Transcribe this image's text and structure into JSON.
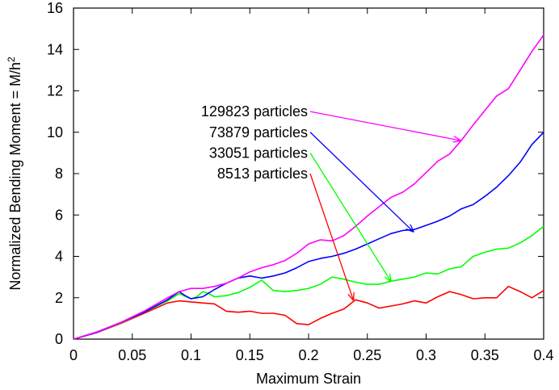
{
  "chart_data": {
    "type": "line",
    "title": "",
    "xlabel": "Maximum Strain",
    "ylabel_main": "Normalized Bending Moment = M/h",
    "ylabel_superscript": "2",
    "xlim": [
      0,
      0.4
    ],
    "ylim": [
      0,
      16
    ],
    "xticks": [
      "0",
      "0.05",
      "0.1",
      "0.15",
      "0.2",
      "0.25",
      "0.3",
      "0.35",
      "0.4"
    ],
    "xtick_values": [
      0,
      0.05,
      0.1,
      0.15,
      0.2,
      0.25,
      0.3,
      0.35,
      0.4
    ],
    "yticks": [
      "0",
      "2",
      "4",
      "6",
      "8",
      "10",
      "12",
      "14",
      "16"
    ],
    "ytick_values": [
      0,
      2,
      4,
      6,
      8,
      10,
      12,
      14,
      16
    ],
    "grid": false,
    "series": [
      {
        "name": "129823 particles",
        "color": "#ff00ff",
        "arrow_to": [
          0.329,
          9.6
        ],
        "x": [
          0,
          0.02,
          0.04,
          0.06,
          0.08,
          0.09,
          0.1,
          0.11,
          0.12,
          0.13,
          0.14,
          0.15,
          0.16,
          0.17,
          0.18,
          0.19,
          0.2,
          0.21,
          0.22,
          0.23,
          0.24,
          0.25,
          0.26,
          0.27,
          0.28,
          0.29,
          0.3,
          0.31,
          0.32,
          0.33,
          0.34,
          0.35,
          0.36,
          0.37,
          0.38,
          0.39,
          0.4
        ],
        "y": [
          0,
          0.35,
          0.8,
          1.35,
          2.0,
          2.3,
          2.45,
          2.45,
          2.55,
          2.7,
          2.95,
          3.25,
          3.45,
          3.6,
          3.8,
          4.15,
          4.6,
          4.8,
          4.75,
          5.0,
          5.45,
          5.95,
          6.4,
          6.85,
          7.1,
          7.5,
          8.05,
          8.6,
          8.95,
          9.6,
          10.35,
          11.05,
          11.75,
          12.1,
          13.0,
          13.9,
          14.7
        ]
      },
      {
        "name": "73879 particles",
        "color": "#0000ff",
        "arrow_to": [
          0.289,
          5.2
        ],
        "x": [
          0,
          0.02,
          0.04,
          0.06,
          0.08,
          0.09,
          0.095,
          0.1,
          0.11,
          0.12,
          0.13,
          0.14,
          0.15,
          0.16,
          0.17,
          0.18,
          0.19,
          0.2,
          0.21,
          0.22,
          0.23,
          0.24,
          0.25,
          0.26,
          0.27,
          0.28,
          0.29,
          0.3,
          0.31,
          0.32,
          0.33,
          0.34,
          0.35,
          0.36,
          0.37,
          0.38,
          0.39,
          0.4
        ],
        "y": [
          0,
          0.33,
          0.8,
          1.3,
          1.9,
          2.3,
          2.1,
          1.95,
          2.05,
          2.4,
          2.7,
          2.95,
          3.05,
          2.95,
          3.05,
          3.2,
          3.45,
          3.75,
          3.9,
          4.0,
          4.15,
          4.35,
          4.6,
          4.85,
          5.1,
          5.25,
          5.3,
          5.5,
          5.7,
          5.95,
          6.3,
          6.5,
          6.9,
          7.35,
          7.9,
          8.55,
          9.4,
          10.0
        ]
      },
      {
        "name": "33051 particles",
        "color": "#00ff00",
        "arrow_to": [
          0.27,
          2.8
        ],
        "x": [
          0,
          0.02,
          0.04,
          0.06,
          0.08,
          0.09,
          0.1,
          0.105,
          0.11,
          0.115,
          0.12,
          0.13,
          0.14,
          0.15,
          0.16,
          0.17,
          0.18,
          0.19,
          0.2,
          0.21,
          0.22,
          0.23,
          0.24,
          0.25,
          0.26,
          0.27,
          0.28,
          0.29,
          0.3,
          0.31,
          0.32,
          0.33,
          0.34,
          0.35,
          0.36,
          0.37,
          0.38,
          0.39,
          0.4
        ],
        "y": [
          0,
          0.33,
          0.78,
          1.3,
          1.85,
          2.2,
          1.95,
          2.05,
          2.3,
          2.2,
          2.05,
          2.1,
          2.25,
          2.5,
          2.85,
          2.35,
          2.3,
          2.35,
          2.45,
          2.65,
          3.0,
          2.9,
          2.75,
          2.65,
          2.65,
          2.8,
          2.9,
          3.0,
          3.2,
          3.15,
          3.4,
          3.5,
          4.0,
          4.2,
          4.35,
          4.4,
          4.65,
          5.0,
          5.45
        ]
      },
      {
        "name": "8513 particles",
        "color": "#ff0000",
        "arrow_to": [
          0.238,
          1.9
        ],
        "x": [
          0,
          0.02,
          0.04,
          0.06,
          0.08,
          0.09,
          0.1,
          0.11,
          0.12,
          0.13,
          0.14,
          0.15,
          0.16,
          0.17,
          0.18,
          0.19,
          0.2,
          0.21,
          0.22,
          0.23,
          0.24,
          0.25,
          0.26,
          0.27,
          0.28,
          0.29,
          0.3,
          0.31,
          0.32,
          0.33,
          0.34,
          0.35,
          0.36,
          0.37,
          0.38,
          0.39,
          0.4
        ],
        "y": [
          0,
          0.32,
          0.75,
          1.25,
          1.75,
          1.85,
          1.8,
          1.75,
          1.7,
          1.35,
          1.3,
          1.35,
          1.25,
          1.25,
          1.15,
          0.75,
          0.7,
          1.0,
          1.25,
          1.45,
          1.9,
          1.75,
          1.5,
          1.6,
          1.7,
          1.85,
          1.75,
          2.05,
          2.3,
          2.15,
          1.95,
          2.0,
          2.0,
          2.55,
          2.3,
          2.0,
          2.35
        ]
      }
    ],
    "annotations": [
      {
        "text": "129823 particles",
        "color": "#ff00ff",
        "anchor_value": 11.0
      },
      {
        "text": "73879 particles",
        "color": "#0000ff",
        "anchor_value": 10.0
      },
      {
        "text": "33051 particles",
        "color": "#00ff00",
        "anchor_value": 9.0
      },
      {
        "text": "8513 particles",
        "color": "#ff0000",
        "anchor_value": 8.0
      }
    ]
  }
}
